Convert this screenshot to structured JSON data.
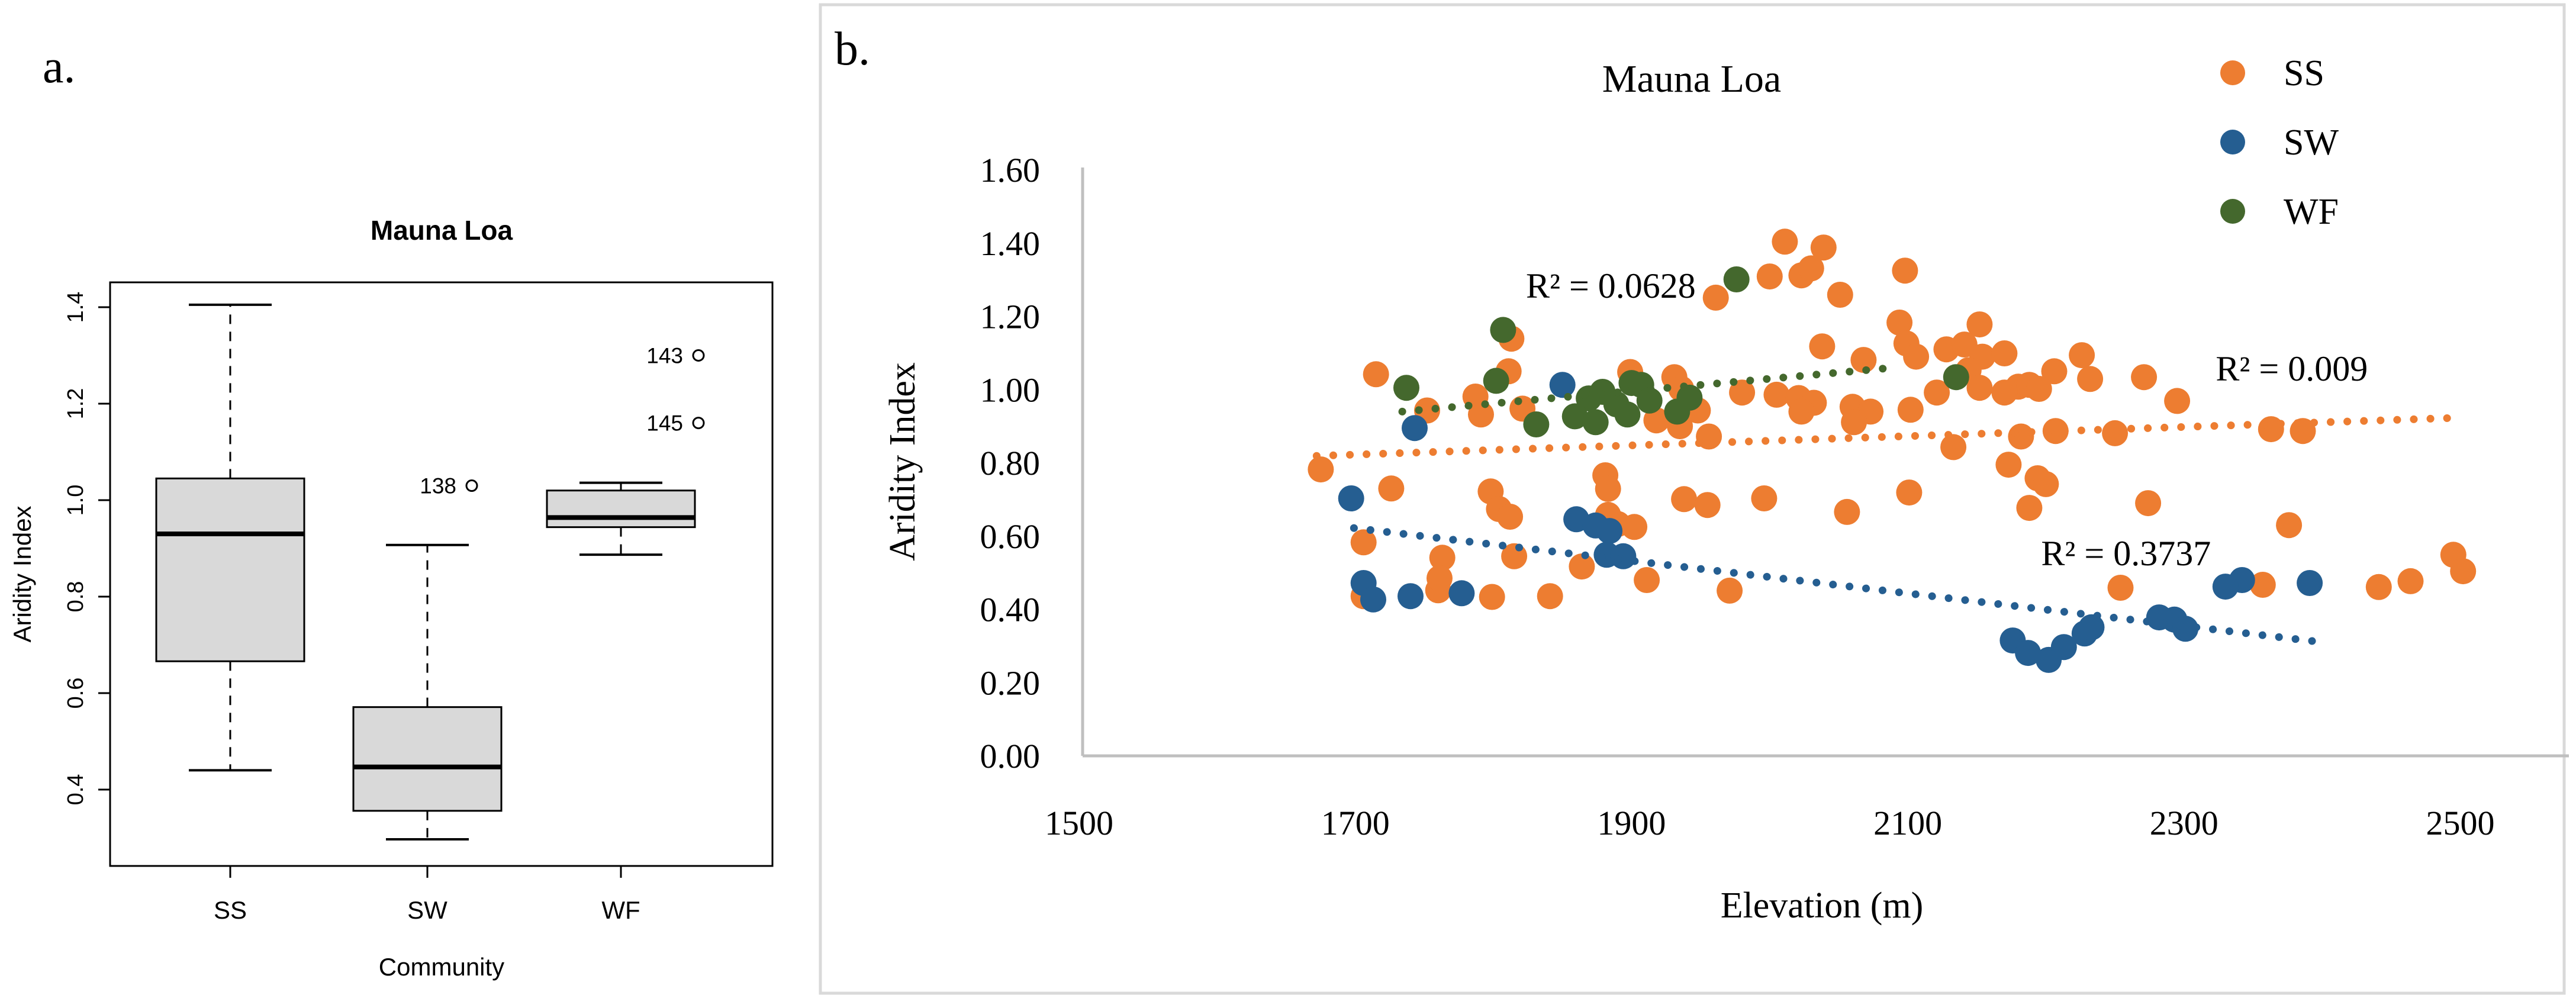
{
  "figure": {
    "panel_a_label": "a.",
    "panel_b_label": "b."
  },
  "colors": {
    "ss_orange": "#ED7D31",
    "sw_blue": "#255E91",
    "wf_green": "#44682D",
    "box_fill": "#D9D9D9",
    "axis_gray": "#BFBFBF",
    "frame_gray": "#D9D9D9",
    "black": "#000000"
  },
  "chart_data": [
    {
      "type": "boxplot",
      "title": "Mauna Loa",
      "xlabel": "Community",
      "ylabel": "Aridity Index",
      "categories": [
        "SS",
        "SW",
        "WF"
      ],
      "yticks": [
        0.4,
        0.6,
        0.8,
        1.0,
        1.2,
        1.4
      ],
      "ylim": [
        0.245,
        1.45
      ],
      "boxes": [
        {
          "category": "SS",
          "whisker_low": 0.44,
          "q1": 0.666,
          "median": 0.93,
          "q3": 1.045,
          "whisker_high": 1.405
        },
        {
          "category": "SW",
          "whisker_low": 0.297,
          "q1": 0.356,
          "median": 0.447,
          "q3": 0.571,
          "whisker_high": 0.907
        },
        {
          "category": "WF",
          "whisker_low": 0.887,
          "q1": 0.944,
          "median": 0.964,
          "q3": 1.02,
          "whisker_high": 1.036
        }
      ],
      "outliers": [
        {
          "category": "SW",
          "label": "138",
          "value": 1.03
        },
        {
          "category": "WF",
          "label": "143",
          "value": 1.3
        },
        {
          "category": "WF",
          "label": "145",
          "value": 1.16
        }
      ]
    },
    {
      "type": "scatter",
      "title": "Mauna Loa",
      "xlabel": "Elevation (m)",
      "ylabel": "Aridity Index",
      "xlim": [
        1500,
        2580
      ],
      "ylim": [
        0.0,
        1.6
      ],
      "xticks": [
        1500,
        1700,
        1900,
        2100,
        2300,
        2500
      ],
      "yticks": [
        0.0,
        0.2,
        0.4,
        0.6,
        0.8,
        1.0,
        1.2,
        1.4,
        1.6
      ],
      "grid": false,
      "legend_position": "top-right",
      "series": [
        {
          "name": "SS",
          "color": "#ED7D31",
          "trend": {
            "x1": 1672,
            "y1": 0.819,
            "x2": 2498,
            "y2": 0.923
          },
          "r2": {
            "text": "R² = 0.009",
            "x": 2378,
            "y": 1.057
          },
          "points": [
            [
              2011,
              1.404
            ],
            [
              2039,
              1.388
            ],
            [
              2000,
              1.309
            ],
            [
              2023,
              1.312
            ],
            [
              2030,
              1.331
            ],
            [
              2051,
              1.259
            ],
            [
              2098,
              1.325
            ],
            [
              1961,
              1.251
            ],
            [
              2094,
              1.183
            ],
            [
              2152,
              1.178
            ],
            [
              2099,
              1.126
            ],
            [
              2106,
              1.09
            ],
            [
              2038,
              1.118
            ],
            [
              2068,
              1.081
            ],
            [
              2128,
              1.11
            ],
            [
              2141,
              1.123
            ],
            [
              2154,
              1.09
            ],
            [
              2144,
              1.053
            ],
            [
              2170,
              1.099
            ],
            [
              2180,
              1.008
            ],
            [
              1980,
              0.992
            ],
            [
              2005,
              0.986
            ],
            [
              2021,
              0.977
            ],
            [
              2032,
              0.964
            ],
            [
              2060,
              0.953
            ],
            [
              2073,
              0.94
            ],
            [
              2121,
              0.992
            ],
            [
              1931,
              1.034
            ],
            [
              1936,
              1.002
            ],
            [
              1948,
              0.943
            ],
            [
              1918,
              0.916
            ],
            [
              1935,
              0.9
            ],
            [
              1956,
              0.872
            ],
            [
              2023,
              0.94
            ],
            [
              2061,
              0.911
            ],
            [
              2102,
              0.945
            ],
            [
              2152,
              1.005
            ],
            [
              2170,
              0.992
            ],
            [
              2188,
              1.013
            ],
            [
              2182,
              0.872
            ],
            [
              2206,
              1.05
            ],
            [
              2226,
              1.094
            ],
            [
              2232,
              1.029
            ],
            [
              2195,
              1.002
            ],
            [
              2207,
              0.887
            ],
            [
              2271,
              1.034
            ],
            [
              2295,
              0.969
            ],
            [
              2250,
              0.881
            ],
            [
              2363,
              0.892
            ],
            [
              2386,
              0.887
            ],
            [
              1813,
              1.139
            ],
            [
              1715,
              1.042
            ],
            [
              1752,
              0.943
            ],
            [
              1787,
              0.981
            ],
            [
              1811,
              1.05
            ],
            [
              1791,
              0.932
            ],
            [
              1821,
              0.948
            ],
            [
              1899,
              1.048
            ],
            [
              1881,
              0.766
            ],
            [
              1675,
              0.782
            ],
            [
              1726,
              0.73
            ],
            [
              1798,
              0.722
            ],
            [
              1804,
              0.674
            ],
            [
              1812,
              0.653
            ],
            [
              1890,
              0.633
            ],
            [
              1706,
              0.583
            ],
            [
              1938,
              0.701
            ],
            [
              1955,
              0.685
            ],
            [
              1996,
              0.703
            ],
            [
              2056,
              0.666
            ],
            [
              2101,
              0.719
            ],
            [
              2173,
              0.795
            ],
            [
              2194,
              0.758
            ],
            [
              2200,
              0.742
            ],
            [
              2188,
              0.677
            ],
            [
              2133,
              0.843
            ],
            [
              1883,
              0.729
            ],
            [
              1883,
              0.658
            ],
            [
              1902,
              0.625
            ],
            [
              2274,
              0.69
            ],
            [
              2376,
              0.63
            ],
            [
              2495,
              0.549
            ],
            [
              2502,
              0.504
            ],
            [
              1706,
              0.436
            ],
            [
              1760,
              0.452
            ],
            [
              1763,
              0.541
            ],
            [
              1799,
              0.434
            ],
            [
              1815,
              0.545
            ],
            [
              1841,
              0.436
            ],
            [
              1864,
              0.517
            ],
            [
              1911,
              0.48
            ],
            [
              1971,
              0.451
            ],
            [
              2357,
              0.467
            ],
            [
              2441,
              0.461
            ],
            [
              2464,
              0.477
            ],
            [
              2254,
              0.459
            ],
            [
              1761,
              0.485
            ]
          ]
        },
        {
          "name": "SW",
          "color": "#255E91",
          "trend": {
            "x1": 1699,
            "y1": 0.622,
            "x2": 2394,
            "y2": 0.313
          },
          "r2": {
            "text": "R² = 0.3737",
            "x": 2258,
            "y": 0.553
          },
          "points": [
            [
              1850,
              1.013
            ],
            [
              1743,
              0.895
            ],
            [
              1697,
              0.703
            ],
            [
              1860,
              0.646
            ],
            [
              1874,
              0.629
            ],
            [
              1884,
              0.614
            ],
            [
              1882,
              0.549
            ],
            [
              1894,
              0.545
            ],
            [
              1706,
              0.472
            ],
            [
              1740,
              0.436
            ],
            [
              1777,
              0.444
            ],
            [
              2176,
              0.315
            ],
            [
              2187,
              0.281
            ],
            [
              2202,
              0.262
            ],
            [
              2213,
              0.297
            ],
            [
              2228,
              0.334
            ],
            [
              2293,
              0.372
            ],
            [
              2301,
              0.347
            ],
            [
              2282,
              0.378
            ],
            [
              2342,
              0.48
            ],
            [
              2391,
              0.472
            ],
            [
              1713,
              0.427
            ],
            [
              2330,
              0.462
            ],
            [
              2233,
              0.351
            ]
          ]
        },
        {
          "name": "WF",
          "color": "#44682D",
          "trend": {
            "x1": 1734,
            "y1": 0.94,
            "x2": 2090,
            "y2": 1.06
          },
          "r2": {
            "text": "R² = 0.0628",
            "x": 1885,
            "y": 1.283
          },
          "points": [
            [
              1807,
              1.163
            ],
            [
              1737,
              1.005
            ],
            [
              1802,
              1.024
            ],
            [
              1831,
              0.905
            ],
            [
              1869,
              0.976
            ],
            [
              1879,
              0.994
            ],
            [
              1889,
              0.96
            ],
            [
              1859,
              0.927
            ],
            [
              1874,
              0.911
            ],
            [
              1897,
              0.932
            ],
            [
              1900,
              1.018
            ],
            [
              1907,
              1.013
            ],
            [
              1913,
              0.97
            ],
            [
              1942,
              0.978
            ],
            [
              1933,
              0.94
            ],
            [
              1976,
              1.301
            ],
            [
              2135,
              1.034
            ]
          ]
        }
      ]
    }
  ]
}
